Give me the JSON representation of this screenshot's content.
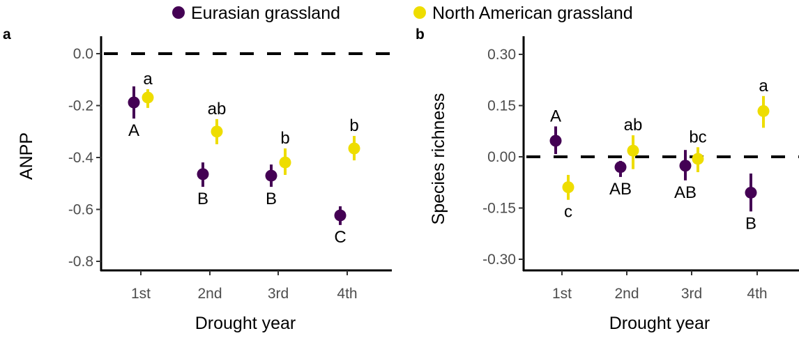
{
  "legend": [
    {
      "name": "Eurasian grassland",
      "color": "#440154"
    },
    {
      "name": "North American grassland",
      "color": "#EEDD00"
    }
  ],
  "chart_data": [
    {
      "panel_label": "a",
      "type": "scatter",
      "xlabel": "Drought year",
      "ylabel": "ANPP",
      "categories": [
        "1st",
        "2nd",
        "3rd",
        "4th"
      ],
      "ylim": [
        -0.82,
        0.02
      ],
      "yticks": [
        0.0,
        -0.2,
        -0.4,
        -0.6,
        -0.8
      ],
      "ytick_labels": [
        "0.0",
        "-0.2",
        "-0.4",
        "-0.6",
        "-0.8"
      ],
      "reference_line": 0.0,
      "grid": false,
      "legend_position": "top",
      "series": [
        {
          "name": "Eurasian grassland",
          "color": "#440154",
          "values": [
            -0.188,
            -0.464,
            -0.47,
            -0.623
          ],
          "lower": [
            -0.25,
            -0.513,
            -0.513,
            -0.66
          ],
          "upper": [
            -0.126,
            -0.419,
            -0.427,
            -0.588
          ],
          "letters": [
            "A",
            "B",
            "B",
            "C"
          ],
          "letter_position": "below"
        },
        {
          "name": "North American grassland",
          "color": "#EEDD00",
          "values": [
            -0.169,
            -0.3,
            -0.419,
            -0.365
          ],
          "lower": [
            -0.209,
            -0.349,
            -0.467,
            -0.411
          ],
          "upper": [
            -0.137,
            -0.252,
            -0.365,
            -0.317
          ],
          "letters": [
            "a",
            "ab",
            "b",
            "b"
          ],
          "letter_position": "above"
        }
      ]
    },
    {
      "panel_label": "b",
      "type": "scatter",
      "xlabel": "Drought year",
      "ylabel": "Species richness",
      "categories": [
        "1st",
        "2nd",
        "3rd",
        "4th"
      ],
      "ylim": [
        -0.33,
        0.33
      ],
      "yticks": [
        0.3,
        0.15,
        0.0,
        -0.15,
        -0.3
      ],
      "ytick_labels": [
        "0.30",
        "0.15",
        "0.00",
        "-0.15",
        "-0.30"
      ],
      "reference_line": 0.0,
      "grid": false,
      "series": [
        {
          "name": "Eurasian grassland",
          "color": "#440154",
          "values": [
            0.047,
            -0.03,
            -0.026,
            -0.105
          ],
          "lower": [
            0.008,
            -0.059,
            -0.069,
            -0.16
          ],
          "upper": [
            0.089,
            -0.012,
            0.02,
            -0.049
          ],
          "letters": [
            "A",
            "AB",
            "AB",
            "B"
          ],
          "letter_position": "mixed"
        },
        {
          "name": "North American grassland",
          "color": "#EEDD00",
          "values": [
            -0.089,
            0.018,
            -0.006,
            0.134
          ],
          "lower": [
            -0.126,
            -0.036,
            -0.045,
            0.085
          ],
          "upper": [
            -0.053,
            0.063,
            0.028,
            0.178
          ],
          "letters": [
            "c",
            "ab",
            "bc",
            "a"
          ],
          "letter_position": "mixed"
        }
      ]
    }
  ]
}
